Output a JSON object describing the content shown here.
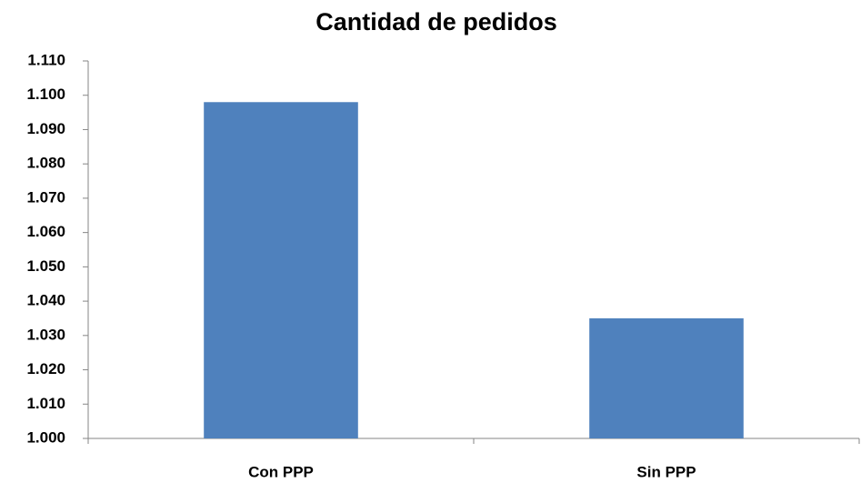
{
  "chart_data": {
    "type": "bar",
    "title": "Cantidad de pedidos",
    "categories": [
      "Con PPP",
      "Sin PPP"
    ],
    "values": [
      1098,
      1035
    ],
    "color": "#4f81bd",
    "ylim": [
      1000,
      1110
    ],
    "yticks": [
      {
        "value": 1000,
        "label": "1.000"
      },
      {
        "value": 1010,
        "label": "1.010"
      },
      {
        "value": 1020,
        "label": "1.020"
      },
      {
        "value": 1030,
        "label": "1.030"
      },
      {
        "value": 1040,
        "label": "1.040"
      },
      {
        "value": 1050,
        "label": "1.050"
      },
      {
        "value": 1060,
        "label": "1.060"
      },
      {
        "value": 1070,
        "label": "1.070"
      },
      {
        "value": 1080,
        "label": "1.080"
      },
      {
        "value": 1090,
        "label": "1.090"
      },
      {
        "value": 1100,
        "label": "1.100"
      },
      {
        "value": 1110,
        "label": "1.110"
      }
    ],
    "grid": false
  }
}
